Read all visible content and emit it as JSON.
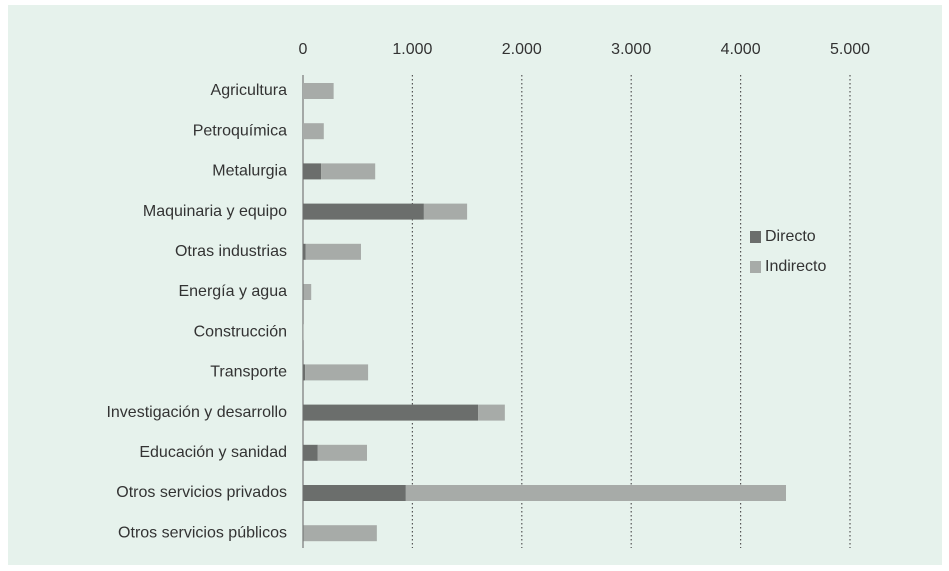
{
  "chart_data": {
    "type": "stacked-bar-horizontal",
    "categories": [
      "Agricultura",
      "Petroquímica",
      "Metalurgia",
      "Maquinaria y equipo",
      "Otras industrias",
      "Energía y agua",
      "Construcción",
      "Transporte",
      "Investigación y desarrollo",
      "Educación y sanidad",
      "Otros servicios privados",
      "Otros servicios públicos"
    ],
    "series": [
      {
        "name": "Directo",
        "color": "#6b6e6c",
        "values": [
          0,
          0,
          165,
          1105,
          25,
          5,
          0,
          20,
          1600,
          135,
          940,
          5
        ]
      },
      {
        "name": "Indirecto",
        "color": "#a7aba8",
        "values": [
          280,
          190,
          495,
          395,
          505,
          70,
          5,
          575,
          245,
          450,
          3475,
          670
        ]
      }
    ],
    "xlim": [
      0,
      5000
    ],
    "xticks": [
      0,
      {
        "value": 1000,
        "label": "1.000"
      },
      {
        "value": 2000,
        "label": "2.000"
      },
      {
        "value": 3000,
        "label": "3.000"
      },
      {
        "value": 4000,
        "label": "4.000"
      },
      {
        "value": 5000,
        "label": "5.000"
      }
    ],
    "grid": true,
    "legend": "right"
  }
}
